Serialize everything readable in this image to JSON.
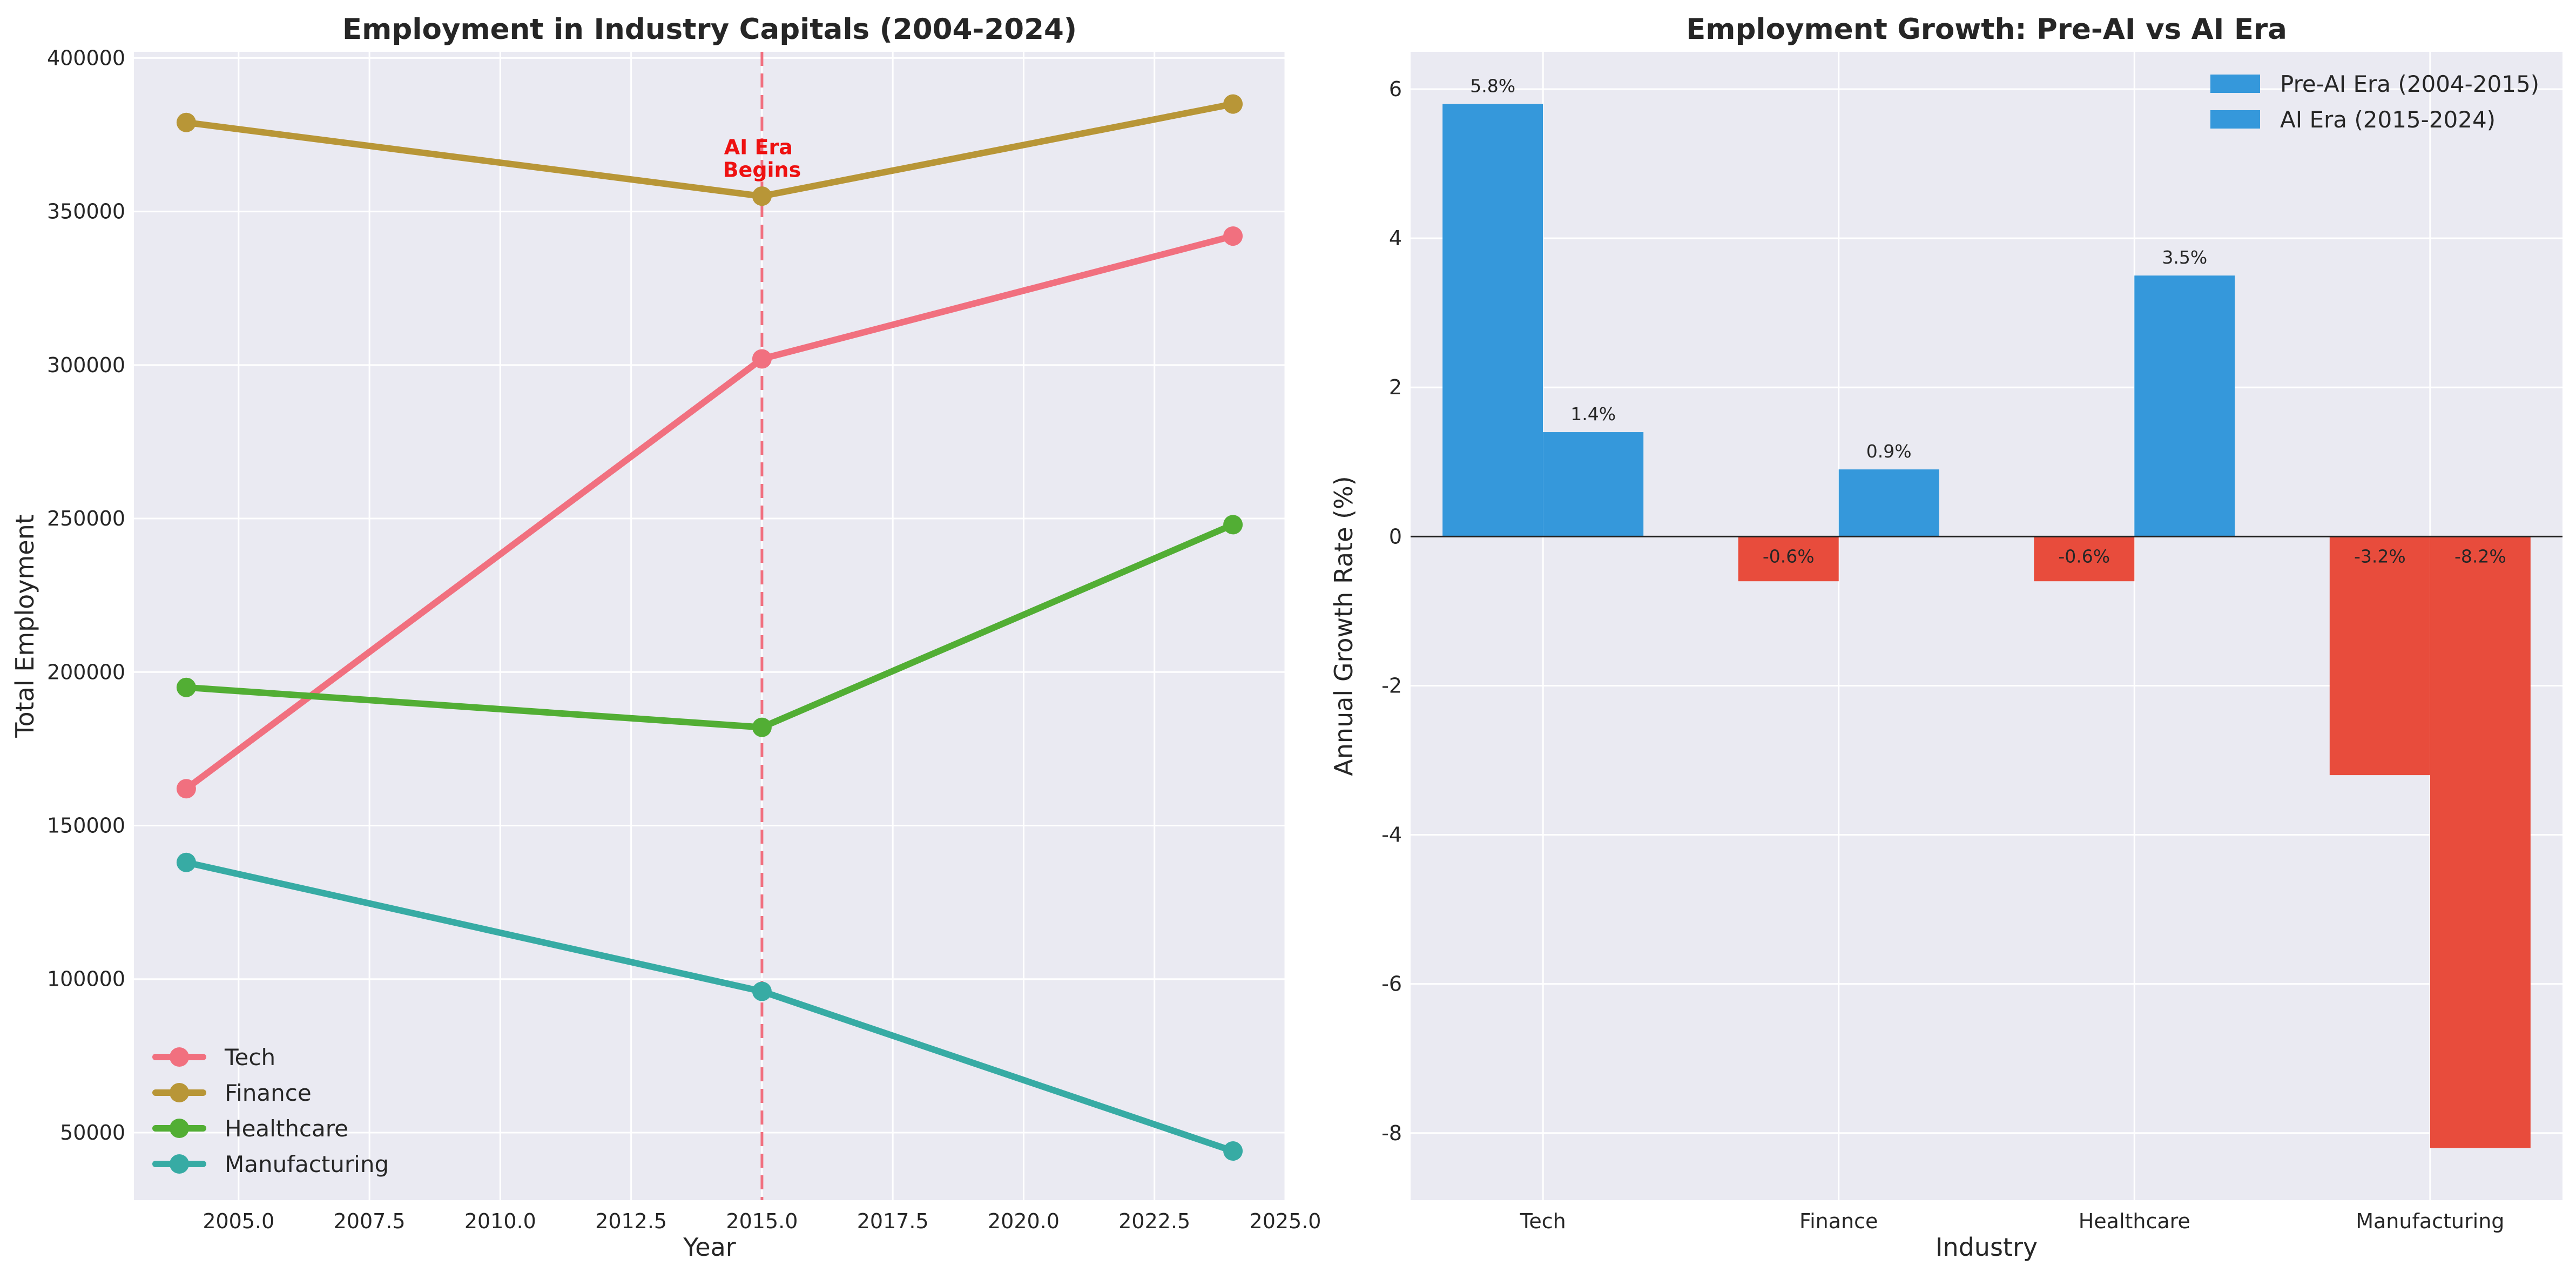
{
  "chart_data": [
    {
      "type": "line",
      "title": "Employment in Industry Capitals (2004-2024)",
      "xlabel": "Year",
      "ylabel": "Total Employment",
      "xlim": [
        2003.0,
        2025.0
      ],
      "ylim": [
        28000,
        402000
      ],
      "xticks": [
        "2005.0",
        "2007.5",
        "2010.0",
        "2012.5",
        "2015.0",
        "2017.5",
        "2020.0",
        "2022.5",
        "2025.0"
      ],
      "yticks": [
        "50000",
        "100000",
        "150000",
        "200000",
        "250000",
        "300000",
        "350000",
        "400000"
      ],
      "x": [
        2004,
        2015,
        2024
      ],
      "series": [
        {
          "name": "Tech",
          "color": "#f1707f",
          "values": [
            162000,
            302000,
            342000
          ]
        },
        {
          "name": "Finance",
          "color": "#b89637",
          "values": [
            379000,
            355000,
            385000
          ]
        },
        {
          "name": "Healthcare",
          "color": "#52ae34",
          "values": [
            195000,
            182000,
            248000
          ]
        },
        {
          "name": "Manufacturing",
          "color": "#37aba4",
          "values": [
            138000,
            96000,
            44000
          ]
        }
      ],
      "vline": {
        "x": 2015,
        "color": "#f1707f"
      },
      "annotation": {
        "lines": [
          "AI Era",
          "Begins"
        ],
        "x": 2015,
        "y": 363000
      },
      "grid": true,
      "legend_position": "lower-left"
    },
    {
      "type": "bar",
      "title": "Employment Growth: Pre-AI vs AI Era",
      "xlabel": "Industry",
      "ylabel": "Annual Growth Rate (%)",
      "categories": [
        "Tech",
        "Finance",
        "Healthcare",
        "Manufacturing"
      ],
      "ylim": [
        -8.9,
        6.5
      ],
      "yticks": [
        "-8",
        "-6",
        "-4",
        "-2",
        "0",
        "2",
        "4",
        "6"
      ],
      "series": [
        {
          "name": "Pre-AI Era (2004-2015)",
          "values": [
            5.8,
            -0.6,
            -0.6,
            -3.2
          ],
          "labels": [
            "5.8%",
            "-0.6%",
            "-0.6%",
            "-3.2%"
          ]
        },
        {
          "name": "AI Era (2015-2024)",
          "values": [
            1.4,
            0.9,
            3.5,
            -8.2
          ],
          "labels": [
            "1.4%",
            "0.9%",
            "3.5%",
            "-8.2%"
          ]
        }
      ],
      "positive_color": "#3598db",
      "negative_color": "#e84c3c",
      "grid": true,
      "legend_position": "top-right"
    }
  ]
}
